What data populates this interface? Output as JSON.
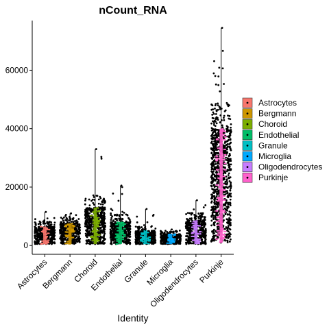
{
  "chart_data": {
    "type": "violin",
    "title": "nCount_RNA",
    "xlabel": "Identity",
    "ylabel": "",
    "ylim": [
      -3000,
      77000
    ],
    "yticks": [
      0,
      20000,
      40000,
      60000
    ],
    "ytick_labels": [
      "0",
      "20000",
      "40000",
      "60000"
    ],
    "grid": false,
    "legend": {
      "position": "right",
      "entries": [
        "Astrocytes",
        "Bergmann",
        "Choroid",
        "Endothelial",
        "Granule",
        "Microglia",
        "Oligodendrocytes",
        "Purkinje"
      ]
    },
    "categories": [
      "Astrocytes",
      "Bergmann",
      "Choroid",
      "Endothelial",
      "Granule",
      "Microglia",
      "Oligodendrocytes",
      "Purkinje"
    ],
    "colors": [
      "#F8766D",
      "#CD9600",
      "#7CAE00",
      "#00BE67",
      "#00BFC4",
      "#00A9FF",
      "#C77CFF",
      "#FF61CC"
    ],
    "series": [
      {
        "name": "Astrocytes",
        "min": 500,
        "median": 3500,
        "q_high": 6500,
        "max": 11500,
        "n_points": 420
      },
      {
        "name": "Bergmann",
        "min": 500,
        "median": 4000,
        "q_high": 7500,
        "max": 11000,
        "n_points": 420
      },
      {
        "name": "Choroid",
        "min": 500,
        "median": 6000,
        "q_high": 13000,
        "max": 33000,
        "n_points": 520
      },
      {
        "name": "Endothelial",
        "min": 500,
        "median": 3500,
        "q_high": 8000,
        "max": 20500,
        "n_points": 460
      },
      {
        "name": "Granule",
        "min": 500,
        "median": 2500,
        "q_high": 5000,
        "max": 12500,
        "n_points": 380
      },
      {
        "name": "Microglia",
        "min": 500,
        "median": 2200,
        "q_high": 4000,
        "max": 5500,
        "n_points": 330
      },
      {
        "name": "Oligodendrocytes",
        "min": 500,
        "median": 4000,
        "q_high": 8500,
        "max": 15500,
        "n_points": 440
      },
      {
        "name": "Purkinje",
        "min": 1000,
        "median": 25000,
        "q_high": 40000,
        "max": 74500,
        "n_points": 900
      }
    ]
  }
}
